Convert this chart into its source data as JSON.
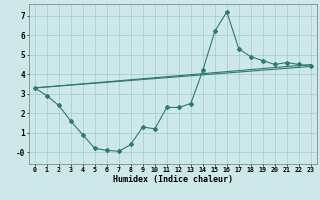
{
  "xlabel": "Humidex (Indice chaleur)",
  "background_color": "#cce8e8",
  "grid_color": "#aacece",
  "line_color": "#2d7a6e",
  "xlim": [
    -0.5,
    23.5
  ],
  "ylim": [
    -0.6,
    7.6
  ],
  "xticks": [
    0,
    1,
    2,
    3,
    4,
    5,
    6,
    7,
    8,
    9,
    10,
    11,
    12,
    13,
    14,
    15,
    16,
    17,
    18,
    19,
    20,
    21,
    22,
    23
  ],
  "yticks": [
    0,
    1,
    2,
    3,
    4,
    5,
    6,
    7
  ],
  "ytick_labels": [
    "-0",
    "1",
    "2",
    "3",
    "4",
    "5",
    "6",
    "7"
  ],
  "line1_x": [
    0,
    1,
    2,
    3,
    4,
    5,
    6,
    7,
    8,
    9,
    10,
    11,
    12,
    13,
    14,
    15,
    16,
    17,
    18,
    19,
    20,
    21,
    22,
    23
  ],
  "line1_y": [
    3.3,
    2.9,
    2.4,
    1.6,
    0.9,
    0.2,
    0.1,
    0.05,
    0.4,
    1.3,
    1.2,
    2.3,
    2.3,
    2.5,
    4.2,
    6.2,
    7.2,
    5.3,
    4.9,
    4.7,
    4.5,
    4.6,
    4.5,
    4.4
  ],
  "line2_x": [
    0,
    23
  ],
  "line2_y": [
    3.3,
    4.5
  ],
  "line3_x": [
    0,
    23
  ],
  "line3_y": [
    3.3,
    4.4
  ]
}
